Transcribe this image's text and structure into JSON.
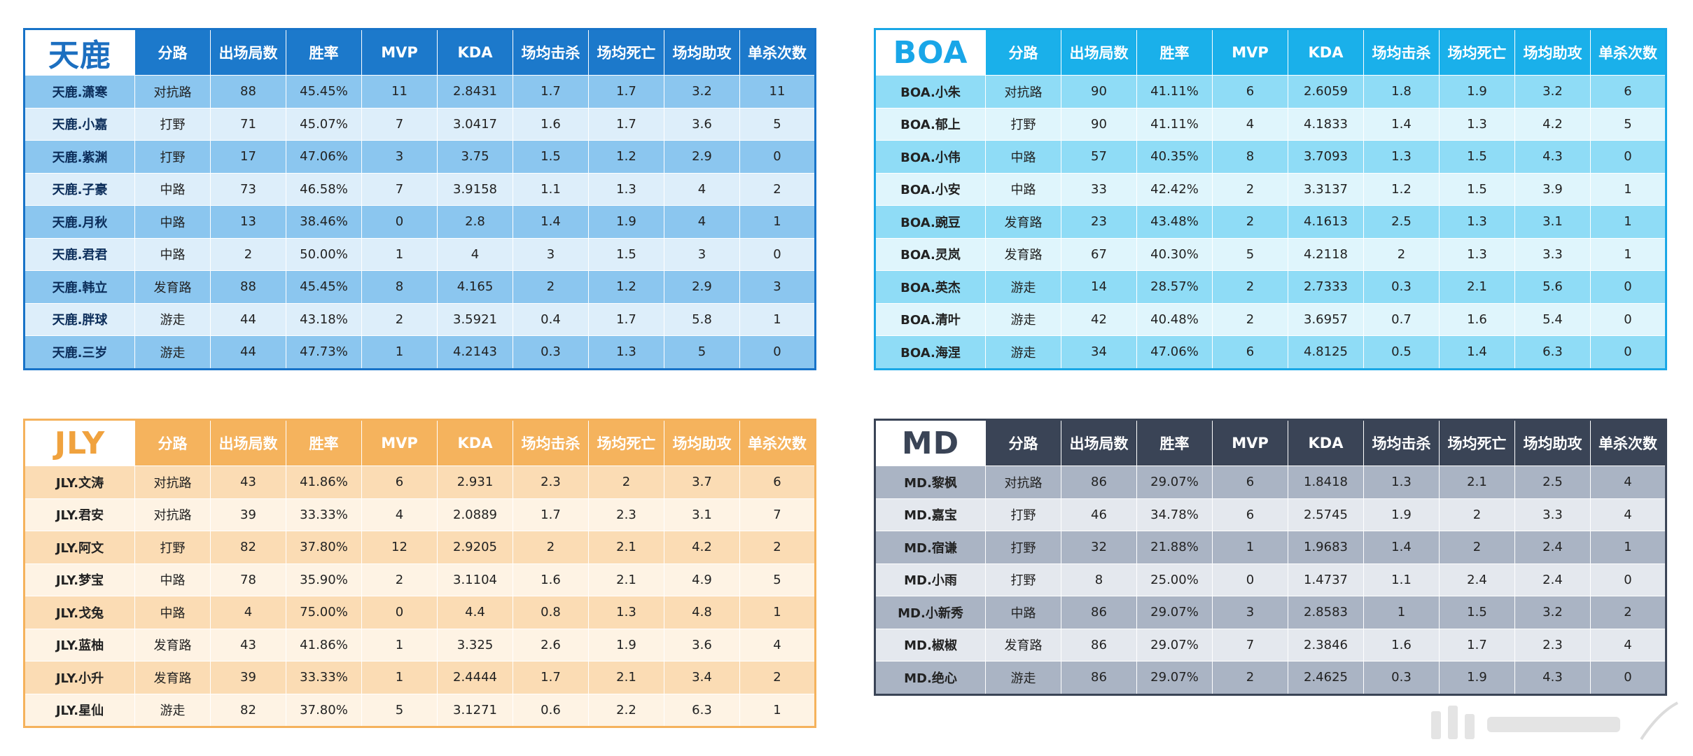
{
  "headers": [
    "分路",
    "出场局数",
    "胜率",
    "MVP",
    "KDA",
    "场均击杀",
    "场均死亡",
    "场均助攻",
    "单杀次数"
  ],
  "colors": {
    "tianlu": "#1c79cb",
    "boa": "#1ab0ea",
    "jly": "#f5b35d",
    "md": "#3a4456"
  },
  "teams": {
    "tianlu": {
      "name": "天鹿",
      "rows": [
        [
          "天鹿.潇寒",
          "对抗路",
          "88",
          "45.45%",
          "11",
          "2.8431",
          "1.7",
          "1.7",
          "3.2",
          "11"
        ],
        [
          "天鹿.小嘉",
          "打野",
          "71",
          "45.07%",
          "7",
          "3.0417",
          "1.6",
          "1.7",
          "3.6",
          "5"
        ],
        [
          "天鹿.紫渊",
          "打野",
          "17",
          "47.06%",
          "3",
          "3.75",
          "1.5",
          "1.2",
          "2.9",
          "0"
        ],
        [
          "天鹿.子豪",
          "中路",
          "73",
          "46.58%",
          "7",
          "3.9158",
          "1.1",
          "1.3",
          "4",
          "2"
        ],
        [
          "天鹿.月秋",
          "中路",
          "13",
          "38.46%",
          "0",
          "2.8",
          "1.4",
          "1.9",
          "4",
          "1"
        ],
        [
          "天鹿.君君",
          "中路",
          "2",
          "50.00%",
          "1",
          "4",
          "3",
          "1.5",
          "3",
          "0"
        ],
        [
          "天鹿.韩立",
          "发育路",
          "88",
          "45.45%",
          "8",
          "4.165",
          "2",
          "1.2",
          "2.9",
          "3"
        ],
        [
          "天鹿.胖球",
          "游走",
          "44",
          "43.18%",
          "2",
          "3.5921",
          "0.4",
          "1.7",
          "5.8",
          "1"
        ],
        [
          "天鹿.三岁",
          "游走",
          "44",
          "47.73%",
          "1",
          "4.2143",
          "0.3",
          "1.3",
          "5",
          "0"
        ]
      ]
    },
    "boa": {
      "name": "BOA",
      "rows": [
        [
          "BOA.小朱",
          "对抗路",
          "90",
          "41.11%",
          "6",
          "2.6059",
          "1.8",
          "1.9",
          "3.2",
          "6"
        ],
        [
          "BOA.郁上",
          "打野",
          "90",
          "41.11%",
          "4",
          "4.1833",
          "1.4",
          "1.3",
          "4.2",
          "5"
        ],
        [
          "BOA.小伟",
          "中路",
          "57",
          "40.35%",
          "8",
          "3.7093",
          "1.3",
          "1.5",
          "4.3",
          "0"
        ],
        [
          "BOA.小安",
          "中路",
          "33",
          "42.42%",
          "2",
          "3.3137",
          "1.2",
          "1.5",
          "3.9",
          "1"
        ],
        [
          "BOA.豌豆",
          "发育路",
          "23",
          "43.48%",
          "2",
          "4.1613",
          "2.5",
          "1.3",
          "3.1",
          "1"
        ],
        [
          "BOA.灵岚",
          "发育路",
          "67",
          "40.30%",
          "5",
          "4.2118",
          "2",
          "1.3",
          "3.3",
          "1"
        ],
        [
          "BOA.英杰",
          "游走",
          "14",
          "28.57%",
          "2",
          "2.7333",
          "0.3",
          "2.1",
          "5.6",
          "0"
        ],
        [
          "BOA.清叶",
          "游走",
          "42",
          "40.48%",
          "2",
          "3.6957",
          "0.7",
          "1.6",
          "5.4",
          "0"
        ],
        [
          "BOA.海涅",
          "游走",
          "34",
          "47.06%",
          "6",
          "4.8125",
          "0.5",
          "1.4",
          "6.3",
          "0"
        ]
      ]
    },
    "jly": {
      "name": "JLY",
      "rows": [
        [
          "JLY.文涛",
          "对抗路",
          "43",
          "41.86%",
          "6",
          "2.931",
          "2.3",
          "2",
          "3.7",
          "6"
        ],
        [
          "JLY.君安",
          "对抗路",
          "39",
          "33.33%",
          "4",
          "2.0889",
          "1.7",
          "2.3",
          "3.1",
          "7"
        ],
        [
          "JLY.阿文",
          "打野",
          "82",
          "37.80%",
          "12",
          "2.9205",
          "2",
          "2.1",
          "4.2",
          "2"
        ],
        [
          "JLY.梦宝",
          "中路",
          "78",
          "35.90%",
          "2",
          "3.1104",
          "1.6",
          "2.1",
          "4.9",
          "5"
        ],
        [
          "JLY.戈兔",
          "中路",
          "4",
          "75.00%",
          "0",
          "4.4",
          "0.8",
          "1.3",
          "4.8",
          "1"
        ],
        [
          "JLY.蓝柚",
          "发育路",
          "43",
          "41.86%",
          "1",
          "3.325",
          "2.6",
          "1.9",
          "3.6",
          "4"
        ],
        [
          "JLY.小升",
          "发育路",
          "39",
          "33.33%",
          "1",
          "2.4444",
          "1.7",
          "2.1",
          "3.4",
          "2"
        ],
        [
          "JLY.星仙",
          "游走",
          "82",
          "37.80%",
          "5",
          "3.1271",
          "0.6",
          "2.2",
          "6.3",
          "1"
        ]
      ]
    },
    "md": {
      "name": "MD",
      "rows": [
        [
          "MD.黎枫",
          "对抗路",
          "86",
          "29.07%",
          "6",
          "1.8418",
          "1.3",
          "2.1",
          "2.5",
          "4"
        ],
        [
          "MD.嘉宝",
          "打野",
          "46",
          "34.78%",
          "6",
          "2.5745",
          "1.9",
          "2",
          "3.3",
          "4"
        ],
        [
          "MD.宿谦",
          "打野",
          "32",
          "21.88%",
          "1",
          "1.9683",
          "1.4",
          "2",
          "2.4",
          "1"
        ],
        [
          "MD.小雨",
          "打野",
          "8",
          "25.00%",
          "0",
          "1.4737",
          "1.1",
          "2.4",
          "2.4",
          "0"
        ],
        [
          "MD.小新秀",
          "中路",
          "86",
          "29.07%",
          "3",
          "2.8583",
          "1",
          "1.5",
          "3.2",
          "2"
        ],
        [
          "MD.椒椒",
          "发育路",
          "86",
          "29.07%",
          "7",
          "2.3846",
          "1.6",
          "1.7",
          "2.3",
          "4"
        ],
        [
          "MD.绝心",
          "游走",
          "86",
          "29.07%",
          "2",
          "2.4625",
          "0.3",
          "1.9",
          "4.3",
          "0"
        ]
      ]
    }
  }
}
